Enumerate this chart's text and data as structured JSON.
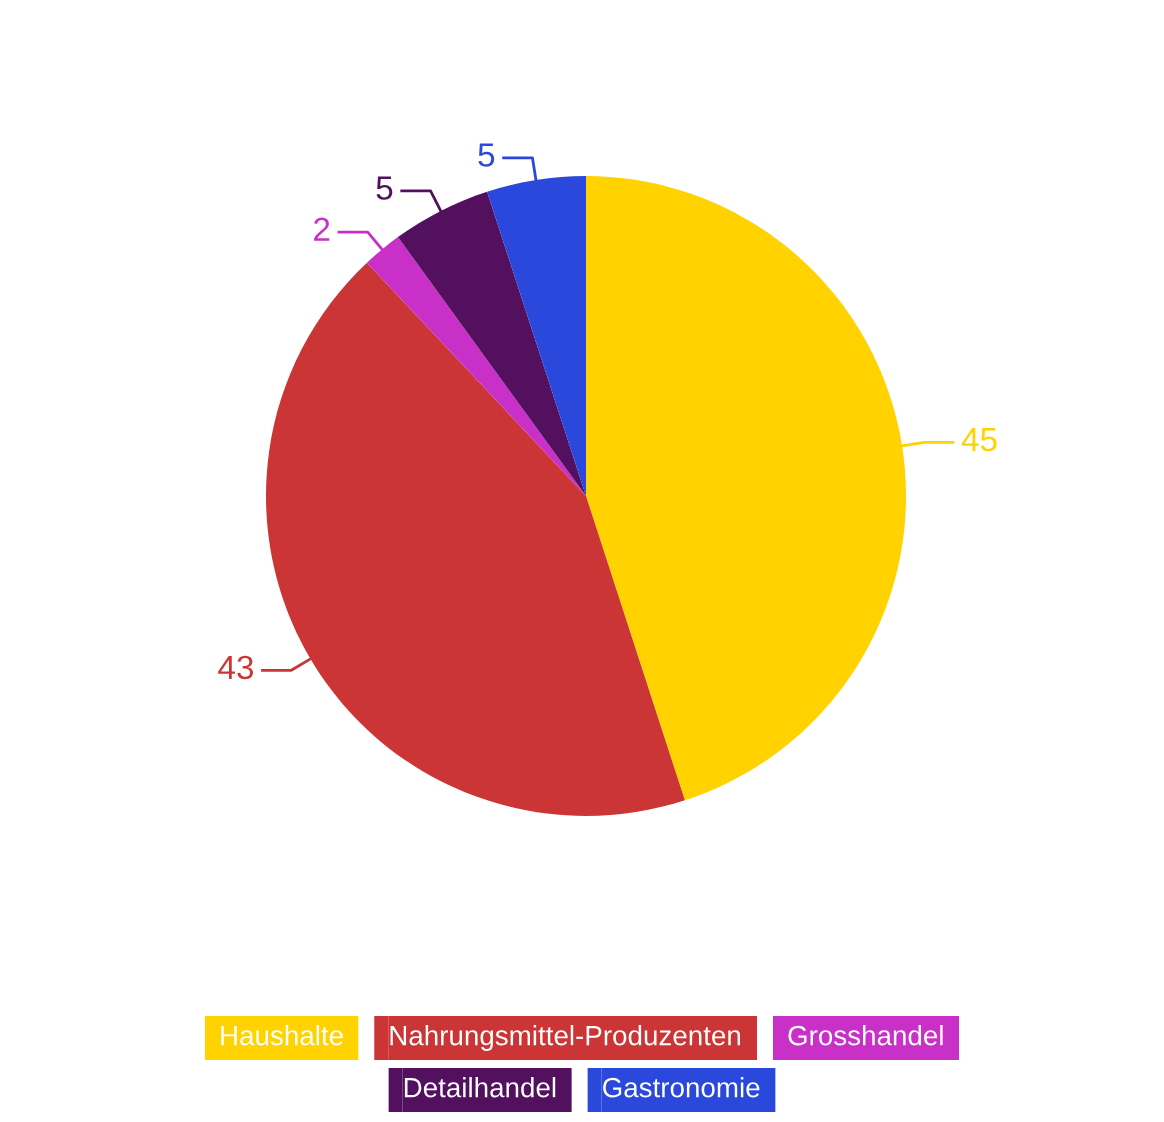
{
  "chart_data": {
    "type": "pie",
    "categories": [
      "Haushalte",
      "Nahrungsmittel-Produzenten",
      "Grosshandel",
      "Detailhandel",
      "Gastronomie"
    ],
    "values": [
      45,
      43,
      2,
      5,
      5
    ],
    "colors": [
      "#ffd200",
      "#cc3535",
      "#c830c8",
      "#52105e",
      "#2a48dc"
    ],
    "data_labels": true,
    "legend": "bottom"
  }
}
